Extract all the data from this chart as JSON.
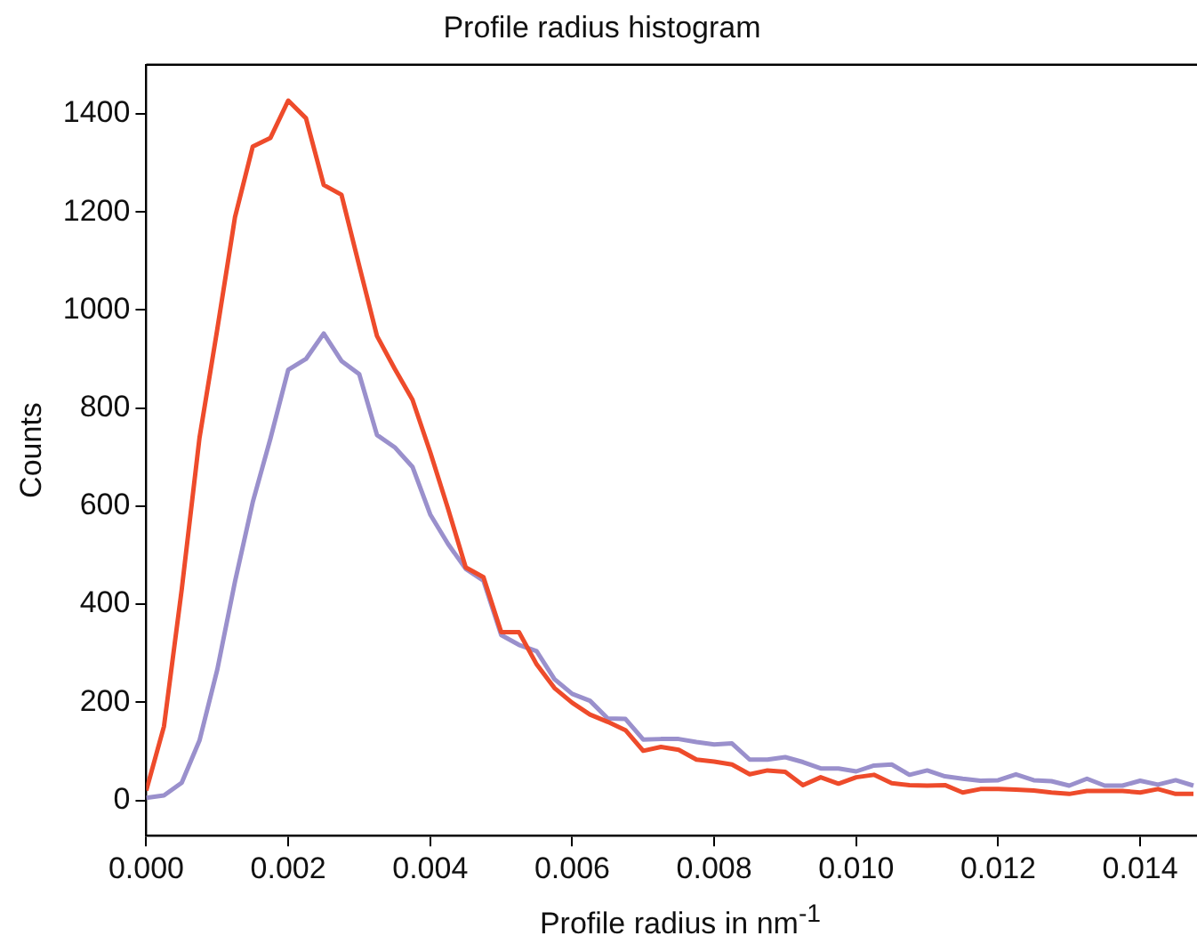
{
  "chart_data": {
    "type": "line",
    "title": "Profile radius histogram",
    "xlabel": "Profile radius in nm$^{-1}$",
    "ylabel": "Counts",
    "x": [
      0,
      0.00025,
      0.0005,
      0.00075,
      0.001,
      0.00125,
      0.0015,
      0.00175,
      0.002,
      0.00225,
      0.0025,
      0.00275,
      0.003,
      0.00325,
      0.0035,
      0.00375,
      0.004,
      0.00425,
      0.0045,
      0.00475,
      0.005,
      0.00525,
      0.0055,
      0.00575,
      0.006,
      0.00625,
      0.0065,
      0.00675,
      0.007,
      0.00725,
      0.0075,
      0.00775,
      0.008,
      0.00825,
      0.0085,
      0.00875,
      0.009,
      0.00925,
      0.0095,
      0.00975,
      0.01,
      0.01025,
      0.0105,
      0.01075,
      0.011,
      0.01125,
      0.0115,
      0.01175,
      0.012,
      0.01225,
      0.0125,
      0.01275,
      0.013,
      0.01325,
      0.0135,
      0.01375,
      0.014,
      0.01425,
      0.0145,
      0.01475
    ],
    "series": [
      {
        "color": "#ee4b2b",
        "values": [
          20,
          151,
          430,
          739,
          960,
          1189,
          1333,
          1351,
          1427,
          1391,
          1255,
          1235,
          1090,
          947,
          880,
          817,
          710,
          595,
          475,
          455,
          343,
          343,
          277,
          229,
          199,
          175,
          160,
          143,
          101,
          109,
          103,
          83,
          79,
          73,
          53,
          61,
          58,
          31,
          47,
          34,
          47,
          52,
          35,
          31,
          30,
          31,
          16,
          23,
          23,
          22,
          20,
          16,
          13,
          19,
          19,
          19,
          16,
          23,
          13,
          13
        ]
      },
      {
        "color": "#9a90cc",
        "values": [
          5,
          10,
          36,
          122,
          266,
          446,
          608,
          738,
          878,
          900,
          952,
          896,
          869,
          745,
          720,
          680,
          583,
          523,
          472,
          448,
          337,
          317,
          304,
          247,
          217,
          203,
          167,
          166,
          124,
          125,
          125,
          119,
          114,
          116,
          83,
          83,
          88,
          78,
          65,
          65,
          59,
          71,
          73,
          52,
          61,
          49,
          44,
          40,
          41,
          53,
          41,
          39,
          30,
          44,
          30,
          30,
          40,
          32,
          41,
          30
        ]
      }
    ],
    "xlim": [
      0,
      0.0148
    ],
    "ylim": [
      -72,
      1500
    ],
    "xticks": [
      {
        "value": 0,
        "label": "0.000"
      },
      {
        "value": 0.002,
        "label": "0.002"
      },
      {
        "value": 0.004,
        "label": "0.004"
      },
      {
        "value": 0.006,
        "label": "0.006"
      },
      {
        "value": 0.008,
        "label": "0.008"
      },
      {
        "value": 0.01,
        "label": "0.010"
      },
      {
        "value": 0.012,
        "label": "0.012"
      },
      {
        "value": 0.014,
        "label": "0.014"
      }
    ],
    "yticks": [
      0,
      200,
      400,
      600,
      800,
      1000,
      1200,
      1400
    ],
    "grid": false,
    "legend": false,
    "marker": "none",
    "line_style": "solid"
  }
}
